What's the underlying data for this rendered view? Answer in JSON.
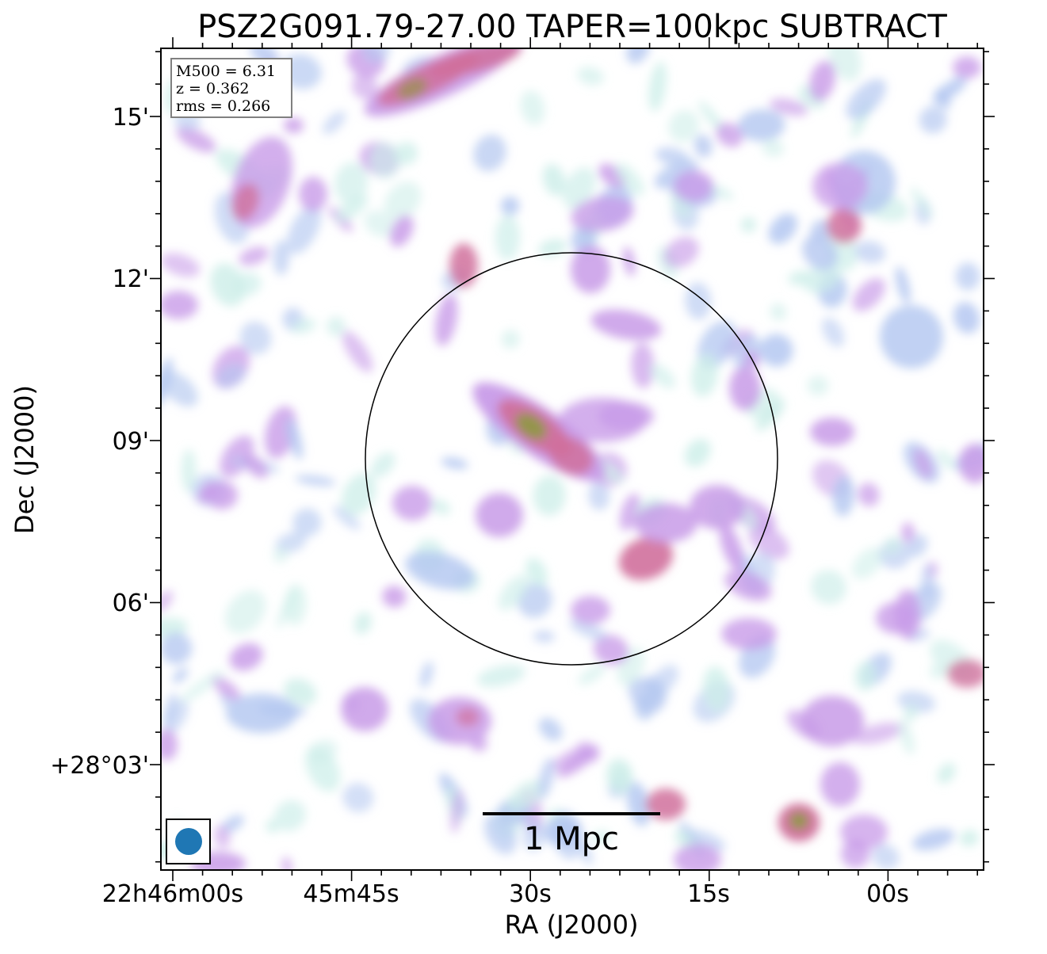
{
  "chart_data": {
    "type": "heatmap",
    "title": "PSZ2G091.79-27.00 TAPER=100kpc SUBTRACT",
    "xlabel": "RA (J2000)",
    "ylabel": "Dec (J2000)",
    "x_ticks": [
      "22h46m00s",
      "45m45s",
      "30s",
      "15s",
      "00s"
    ],
    "y_ticks": [
      "+28°03'",
      "06'",
      "09'",
      "12'",
      "15'"
    ],
    "info_box": {
      "m500": "M500 = 6.31",
      "z": "z = 0.362",
      "rms": "rms = 0.266"
    },
    "scale_bar_label": "1 Mpc",
    "colors": {
      "low": "#cdeee9",
      "mid_low": "#b2c6f0",
      "mid": "#c89be8",
      "high": "#d0709c",
      "peak": "#8a9a3c",
      "beam": "#1f77b4"
    }
  }
}
